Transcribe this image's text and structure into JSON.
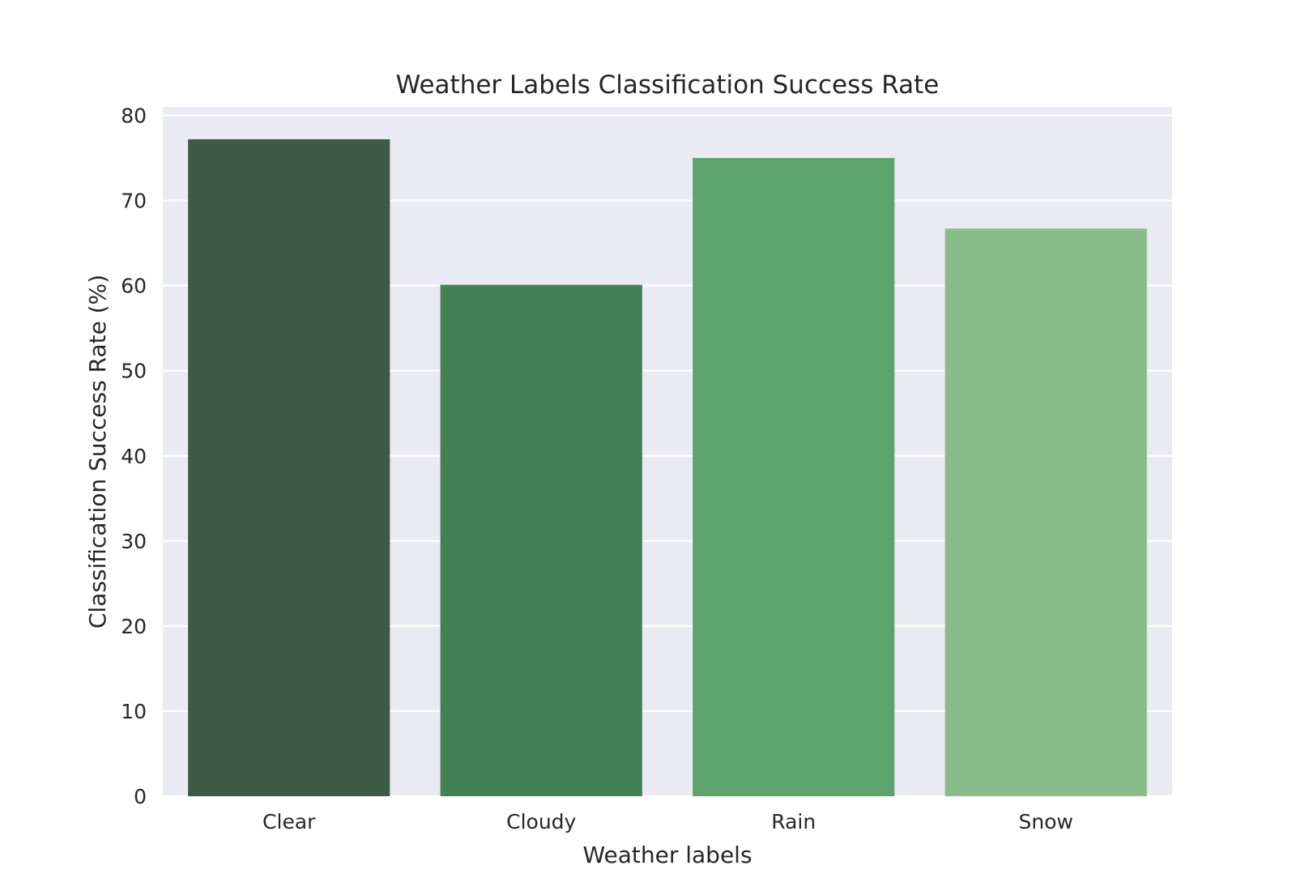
{
  "chart_data": {
    "type": "bar",
    "title": "Weather Labels Classification Success Rate",
    "xlabel": "Weather labels",
    "ylabel": "Classification Success Rate (%)",
    "categories": [
      "Clear",
      "Cloudy",
      "Rain",
      "Snow"
    ],
    "values": [
      77.2,
      60.1,
      75.0,
      66.7
    ],
    "colors": [
      "#3b5b44",
      "#428254",
      "#5ca36d",
      "#88bc8b"
    ],
    "ylim": [
      0,
      81
    ],
    "yticks": [
      0,
      10,
      20,
      30,
      40,
      50,
      60,
      70,
      80
    ],
    "grid": true,
    "background_color": "#eaeaf2",
    "grid_color": "#ffffff"
  }
}
